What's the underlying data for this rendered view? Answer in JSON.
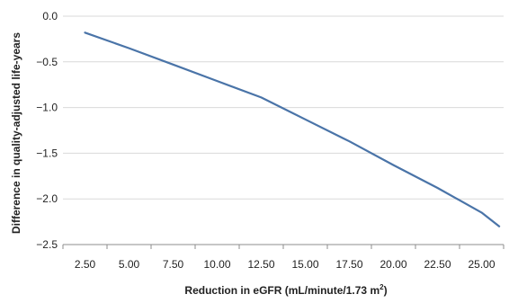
{
  "chart_data": {
    "type": "line",
    "title": "",
    "xlabel": "Reduction in eGFR (mL/minute/1.73 m",
    "xlabel_sup": "2",
    "xlabel_close": ")",
    "ylabel": "Difference in quality-adjusted life-years",
    "categories": [
      "2.50",
      "5.00",
      "7.50",
      "10.00",
      "12.50",
      "15.00",
      "17.50",
      "20.00",
      "22.50",
      "25.00"
    ],
    "x_tick_labels": [
      "2.50",
      "5.00",
      "7.50",
      "10.00",
      "12.50",
      "15.00",
      "17.50",
      "20.00",
      "22.50",
      "25.00"
    ],
    "y_tick_labels": [
      "0.0",
      "-0.5",
      "-1.0",
      "-1.5",
      "-2.0",
      "-2.5"
    ],
    "ylim": [
      -2.5,
      0.0
    ],
    "series": [
      {
        "values": [
          -0.18,
          -0.35,
          -0.53,
          -0.71,
          -0.89,
          -1.13,
          -1.37,
          -1.63,
          -1.88,
          -2.15,
          -2.3
        ]
      }
    ],
    "x_values": [
      2.5,
      5.0,
      7.5,
      10.0,
      12.5,
      15.0,
      17.5,
      20.0,
      22.5,
      25.0,
      26.0
    ],
    "grid": true,
    "line_color": "#4a74a8",
    "grid_color": "#d9d9d9",
    "axis_color": "#8c8c8c"
  }
}
